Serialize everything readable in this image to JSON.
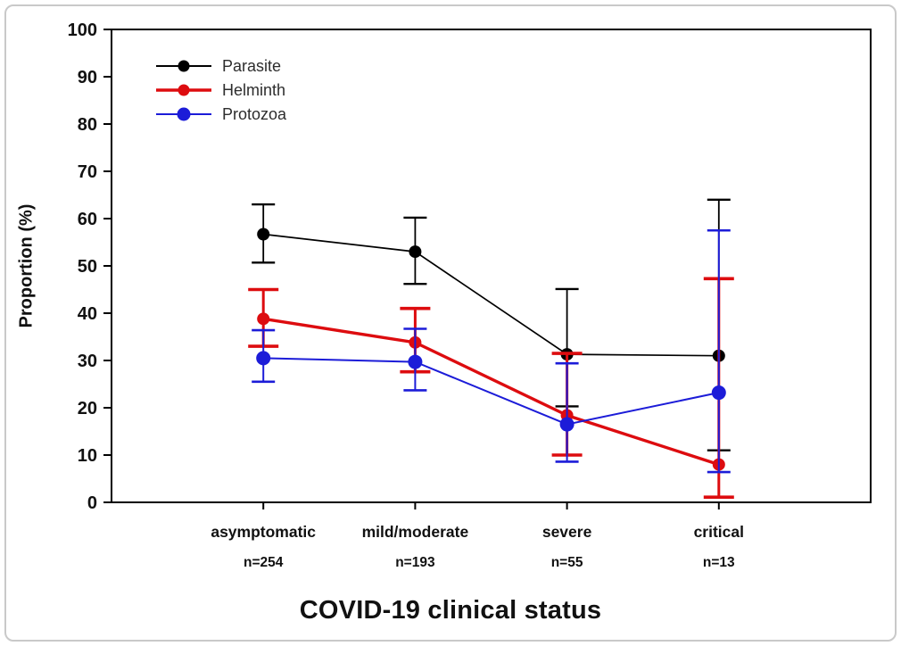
{
  "figure": {
    "background": "#ffffff",
    "frame_color": "#c9c9c9",
    "axis_color": "#000000"
  },
  "chart_data": {
    "type": "line",
    "title": "",
    "xlabel": "COVID-19 clinical status",
    "ylabel": "Proportion (%)",
    "ylim": [
      0,
      100
    ],
    "ytick_interval": 10,
    "grid": false,
    "legend_position": "top-left",
    "categories": [
      "asymptomatic",
      "mild/moderate",
      "severe",
      "critical"
    ],
    "category_counts": [
      "n=254",
      "n=193",
      "n=55",
      "n=13"
    ],
    "series": [
      {
        "name": "Parasite",
        "color": "#000000",
        "line_width": 1.7,
        "error_line_width": 1.8,
        "cap_half_width": 13,
        "marker_radius": 7,
        "values": [
          56.7,
          53.0,
          31.3,
          31.0
        ],
        "ci_low": [
          50.7,
          46.2,
          20.3,
          11.0
        ],
        "ci_high": [
          63.0,
          60.2,
          45.1,
          64.0
        ]
      },
      {
        "name": "Helminth",
        "color": "#dd0c0f",
        "line_width": 3.4,
        "error_line_width": 3.0,
        "cap_half_width": 17,
        "marker_radius": 7,
        "values": [
          38.8,
          33.8,
          18.4,
          8.0
        ],
        "ci_low": [
          33.0,
          27.6,
          10.0,
          1.1
        ],
        "ci_high": [
          45.0,
          41.0,
          31.5,
          47.3
        ]
      },
      {
        "name": "Protozoa",
        "color": "#1c1cd8",
        "line_width": 2.0,
        "error_line_width": 2.0,
        "cap_half_width": 13,
        "marker_radius": 8,
        "values": [
          30.5,
          29.7,
          16.5,
          23.2
        ],
        "ci_low": [
          25.5,
          23.7,
          8.6,
          6.4
        ],
        "ci_high": [
          36.4,
          36.7,
          29.4,
          57.5
        ]
      }
    ]
  }
}
